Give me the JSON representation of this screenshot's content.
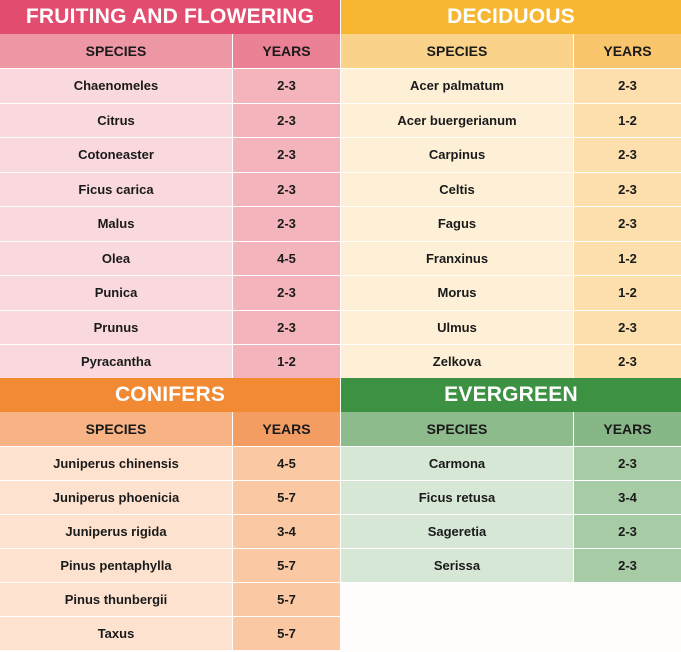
{
  "colors": {
    "fruiting": "#e24c6f",
    "deciduous": "#f7b733",
    "conifers": "#f28a33",
    "evergreen": "#3c9242"
  },
  "headers": {
    "species": "SPECIES",
    "years": "YEARS"
  },
  "fruiting": {
    "title": "FRUITING AND FLOWERING",
    "rows": [
      {
        "species": "Chaenomeles",
        "years": "2-3"
      },
      {
        "species": "Citrus",
        "years": "2-3"
      },
      {
        "species": "Cotoneaster",
        "years": "2-3"
      },
      {
        "species": "Ficus carica",
        "years": "2-3"
      },
      {
        "species": "Malus",
        "years": "2-3"
      },
      {
        "species": "Olea",
        "years": "4-5"
      },
      {
        "species": "Punica",
        "years": "2-3"
      },
      {
        "species": "Prunus",
        "years": "2-3"
      },
      {
        "species": "Pyracantha",
        "years": "1-2"
      }
    ]
  },
  "deciduous": {
    "title": "DECIDUOUS",
    "rows": [
      {
        "species": "Acer palmatum",
        "years": "2-3"
      },
      {
        "species": "Acer buergerianum",
        "years": "1-2"
      },
      {
        "species": "Carpinus",
        "years": "2-3"
      },
      {
        "species": "Celtis",
        "years": "2-3"
      },
      {
        "species": "Fagus",
        "years": "2-3"
      },
      {
        "species": "Franxinus",
        "years": "1-2"
      },
      {
        "species": "Morus",
        "years": "1-2"
      },
      {
        "species": "Ulmus",
        "years": "2-3"
      },
      {
        "species": "Zelkova",
        "years": "2-3"
      }
    ]
  },
  "conifers": {
    "title": "CONIFERS",
    "rows": [
      {
        "species": "Juniperus chinensis",
        "years": "4-5"
      },
      {
        "species": "Juniperus phoenicia",
        "years": "5-7"
      },
      {
        "species": "Juniperus rigida",
        "years": "3-4"
      },
      {
        "species": "Pinus pentaphylla",
        "years": "5-7"
      },
      {
        "species": "Pinus thunbergii",
        "years": "5-7"
      },
      {
        "species": "Taxus",
        "years": "5-7"
      }
    ]
  },
  "evergreen": {
    "title": "EVERGREEN",
    "rows": [
      {
        "species": "Carmona",
        "years": "2-3"
      },
      {
        "species": "Ficus retusa",
        "years": "3-4"
      },
      {
        "species": "Sageretia",
        "years": "2-3"
      },
      {
        "species": "Serissa",
        "years": "2-3"
      }
    ]
  }
}
